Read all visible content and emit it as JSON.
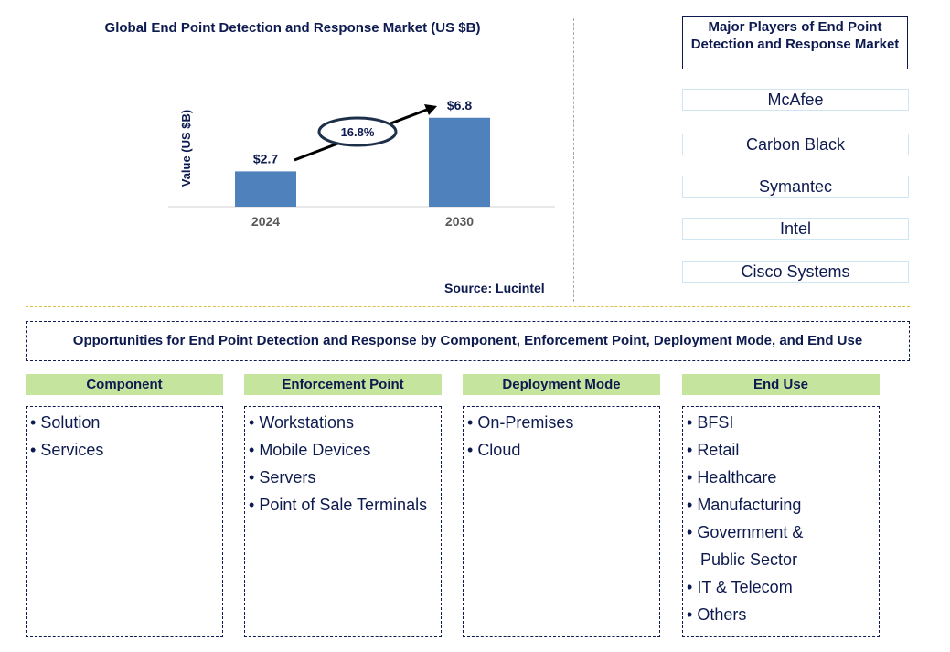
{
  "chart_data": {
    "type": "bar",
    "title": "Global End Point Detection and Response Market (US $B)",
    "ylabel": "Value (US $B)",
    "categories": [
      "2024",
      "2030"
    ],
    "values": [
      2.7,
      6.8
    ],
    "data_labels": [
      "$2.7",
      "$6.8"
    ],
    "annotation": "16.8%",
    "bar_color": "#4f81bd",
    "grid": false
  },
  "source": "Source: Lucintel",
  "players": {
    "title": "Major Players of End Point Detection and Response Market",
    "items": [
      "McAfee",
      "Carbon Black",
      "Symantec",
      "Intel",
      "Cisco Systems"
    ]
  },
  "opportunities": {
    "title": "Opportunities for End Point Detection and Response by Component, Enforcement Point, Deployment Mode, and End Use",
    "columns": [
      {
        "header": "Component",
        "items": [
          "Solution",
          "Services"
        ]
      },
      {
        "header": "Enforcement Point",
        "items": [
          "Workstations",
          "Mobile Devices",
          "Servers",
          "Point of Sale Terminals"
        ]
      },
      {
        "header": "Deployment Mode",
        "items": [
          "On-Premises",
          "Cloud"
        ]
      },
      {
        "header": "End Use",
        "items": [
          "BFSI",
          "Retail",
          "Healthcare",
          "Manufacturing",
          "Government &",
          " Public Sector",
          "IT & Telecom",
          "Others"
        ]
      }
    ]
  },
  "colors": {
    "text": "#0d1a4f",
    "header_green": "#c5e49e",
    "bar": "#4f81bd"
  }
}
